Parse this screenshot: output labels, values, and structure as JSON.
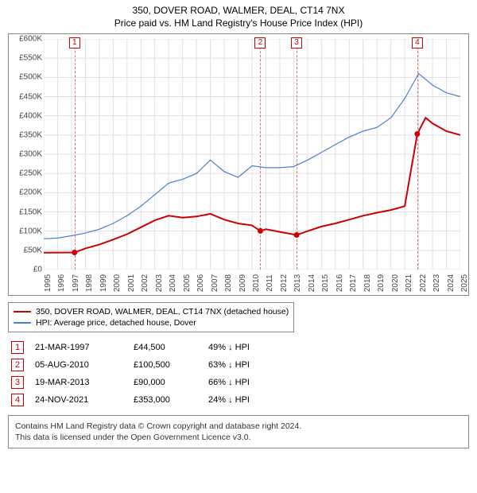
{
  "header": {
    "title1": "350, DOVER ROAD, WALMER, DEAL, CT14 7NX",
    "title2": "Price paid vs. HM Land Registry's House Price Index (HPI)"
  },
  "chart": {
    "type": "line",
    "background_color": "#ffffff",
    "border_color": "#888888",
    "grid_color": "#e0e0e0",
    "ylim": [
      0,
      600000
    ],
    "ytick_step": 50000,
    "ytick_labels": [
      "£0",
      "£50K",
      "£100K",
      "£150K",
      "£200K",
      "£250K",
      "£300K",
      "£350K",
      "£400K",
      "£450K",
      "£500K",
      "£550K",
      "£600K"
    ],
    "xlim": [
      1995,
      2025
    ],
    "xtick_step": 1,
    "xtick_labels": [
      "1995",
      "1996",
      "1997",
      "1998",
      "1999",
      "2000",
      "2001",
      "2002",
      "2003",
      "2004",
      "2005",
      "2006",
      "2007",
      "2008",
      "2009",
      "2010",
      "2011",
      "2012",
      "2013",
      "2014",
      "2015",
      "2016",
      "2017",
      "2018",
      "2019",
      "2020",
      "2021",
      "2022",
      "2023",
      "2024",
      "2025"
    ],
    "series": [
      {
        "name": "price_paid",
        "label": "350, DOVER ROAD, WALMER, DEAL, CT14 7NX (detached house)",
        "color": "#cc0000",
        "line_width": 2,
        "points": [
          [
            1995,
            44000
          ],
          [
            1997.22,
            44500
          ],
          [
            1998,
            55000
          ],
          [
            1999,
            65000
          ],
          [
            2000,
            78000
          ],
          [
            2001,
            92000
          ],
          [
            2002,
            110000
          ],
          [
            2003,
            128000
          ],
          [
            2004,
            140000
          ],
          [
            2005,
            135000
          ],
          [
            2006,
            138000
          ],
          [
            2007,
            145000
          ],
          [
            2008,
            130000
          ],
          [
            2009,
            120000
          ],
          [
            2010,
            115000
          ],
          [
            2010.6,
            100500
          ],
          [
            2011,
            105000
          ],
          [
            2012,
            98000
          ],
          [
            2013.21,
            90000
          ],
          [
            2014,
            100000
          ],
          [
            2015,
            112000
          ],
          [
            2016,
            120000
          ],
          [
            2017,
            130000
          ],
          [
            2018,
            140000
          ],
          [
            2019,
            148000
          ],
          [
            2020,
            155000
          ],
          [
            2021,
            165000
          ],
          [
            2021.9,
            353000
          ],
          [
            2022.5,
            395000
          ],
          [
            2023,
            380000
          ],
          [
            2024,
            360000
          ],
          [
            2025,
            350000
          ]
        ],
        "dots": [
          [
            1997.22,
            44500
          ],
          [
            2010.6,
            100500
          ],
          [
            2013.21,
            90000
          ],
          [
            2021.9,
            353000
          ]
        ]
      },
      {
        "name": "hpi",
        "label": "HPI: Average price, detached house, Dover",
        "color": "#4a7fd6",
        "line_width": 1.2,
        "points": [
          [
            1995,
            80000
          ],
          [
            1996,
            82000
          ],
          [
            1997,
            88000
          ],
          [
            1998,
            95000
          ],
          [
            1999,
            105000
          ],
          [
            2000,
            120000
          ],
          [
            2001,
            140000
          ],
          [
            2002,
            165000
          ],
          [
            2003,
            195000
          ],
          [
            2004,
            225000
          ],
          [
            2005,
            235000
          ],
          [
            2006,
            250000
          ],
          [
            2007,
            285000
          ],
          [
            2008,
            255000
          ],
          [
            2009,
            240000
          ],
          [
            2010,
            270000
          ],
          [
            2011,
            265000
          ],
          [
            2012,
            265000
          ],
          [
            2013,
            268000
          ],
          [
            2014,
            285000
          ],
          [
            2015,
            305000
          ],
          [
            2016,
            325000
          ],
          [
            2017,
            345000
          ],
          [
            2018,
            360000
          ],
          [
            2019,
            370000
          ],
          [
            2020,
            395000
          ],
          [
            2021,
            445000
          ],
          [
            2022,
            510000
          ],
          [
            2023,
            480000
          ],
          [
            2024,
            460000
          ],
          [
            2025,
            450000
          ]
        ]
      }
    ],
    "markers": [
      {
        "n": "1",
        "x": 1997.22
      },
      {
        "n": "2",
        "x": 2010.6
      },
      {
        "n": "3",
        "x": 2013.21
      },
      {
        "n": "4",
        "x": 2021.9
      }
    ]
  },
  "legend": {
    "items": [
      {
        "color": "#cc0000",
        "label": "350, DOVER ROAD, WALMER, DEAL, CT14 7NX (detached house)"
      },
      {
        "color": "#4a7fd6",
        "label": "HPI: Average price, detached house, Dover"
      }
    ]
  },
  "events": [
    {
      "n": "1",
      "date": "21-MAR-1997",
      "price": "£44,500",
      "diff": "49% ↓ HPI"
    },
    {
      "n": "2",
      "date": "05-AUG-2010",
      "price": "£100,500",
      "diff": "63% ↓ HPI"
    },
    {
      "n": "3",
      "date": "19-MAR-2013",
      "price": "£90,000",
      "diff": "66% ↓ HPI"
    },
    {
      "n": "4",
      "date": "24-NOV-2021",
      "price": "£353,000",
      "diff": "24% ↓ HPI"
    }
  ],
  "footer": {
    "line1": "Contains HM Land Registry data © Crown copyright and database right 2024.",
    "line2": "This data is licensed under the Open Government Licence v3.0."
  }
}
